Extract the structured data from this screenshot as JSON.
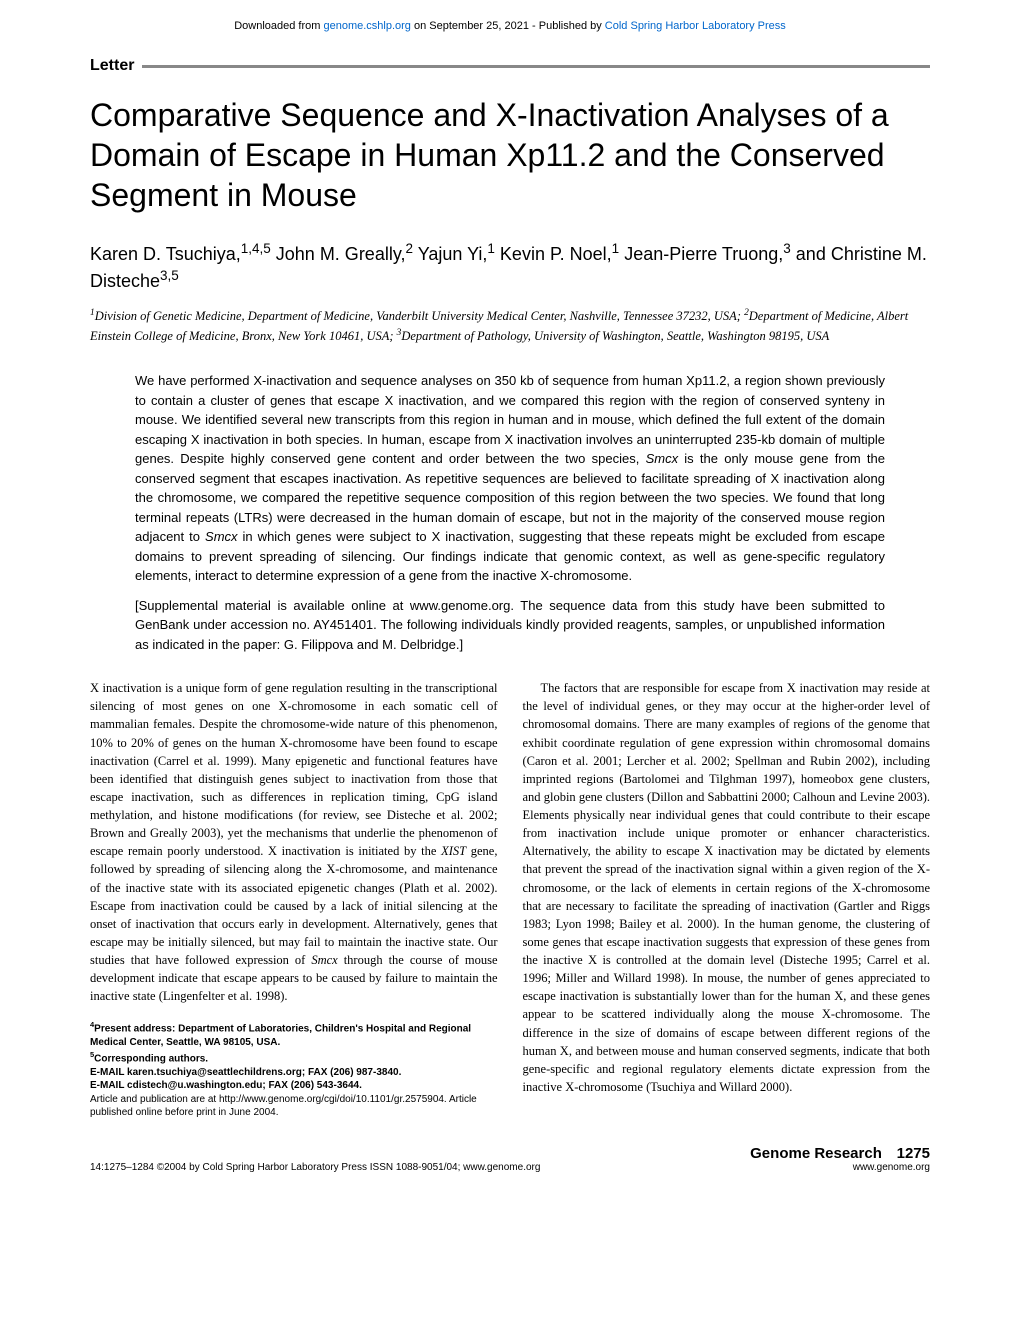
{
  "download": {
    "prefix": "Downloaded from ",
    "link1": "genome.cshlp.org",
    "mid": " on September 25, 2021 - Published by ",
    "link2": "Cold Spring Harbor Laboratory Press"
  },
  "section_label": "Letter",
  "title": "Comparative Sequence and X-Inactivation Analyses of a Domain of Escape in Human Xp11.2 and the Conserved Segment in Mouse",
  "authors_html": "Karen D. Tsuchiya,<sup>1,4,5</sup> John M. Greally,<sup>2</sup> Yajun Yi,<sup>1</sup> Kevin P. Noel,<sup>1</sup> Jean-Pierre Truong,<sup>3</sup> and Christine M. Disteche<sup>3,5</sup>",
  "affiliations_html": "<sup>1</sup>Division of Genetic Medicine, Department of Medicine, Vanderbilt University Medical Center, Nashville, Tennessee 37232, USA; <sup>2</sup>Department of Medicine, Albert Einstein College of Medicine, Bronx, New York 10461, USA; <sup>3</sup>Department of Pathology, University of Washington, Seattle, Washington 98195, USA",
  "abstract": {
    "p1": "We have performed X-inactivation and sequence analyses on 350 kb of sequence from human Xp11.2, a region shown previously to contain a cluster of genes that escape X inactivation, and we compared this region with the region of conserved synteny in mouse. We identified several new transcripts from this region in human and in mouse, which defined the full extent of the domain escaping X inactivation in both species. In human, escape from X inactivation involves an uninterrupted 235-kb domain of multiple genes. Despite highly conserved gene content and order between the two species, <span class=\"italic\">Smcx</span> is the only mouse gene from the conserved segment that escapes inactivation. As repetitive sequences are believed to facilitate spreading of X inactivation along the chromosome, we compared the repetitive sequence composition of this region between the two species. We found that long terminal repeats (LTRs) were decreased in the human domain of escape, but not in the majority of the conserved mouse region adjacent to <span class=\"italic\">Smcx</span> in which genes were subject to X inactivation, suggesting that these repeats might be excluded from escape domains to prevent spreading of silencing. Our findings indicate that genomic context, as well as gene-specific regulatory elements, interact to determine expression of a gene from the inactive X-chromosome.",
    "p2": "[Supplemental material is available online at www.genome.org. The sequence data from this study have been submitted to GenBank under accession no. AY451401. The following individuals kindly provided reagents, samples, or unpublished information as indicated in the paper: G. Filippova and M. Delbridge.]"
  },
  "body": {
    "col1": "X inactivation is a unique form of gene regulation resulting in the transcriptional silencing of most genes on one X-chromosome in each somatic cell of mammalian females. Despite the chromosome-wide nature of this phenomenon, 10% to 20% of genes on the human X-chromosome have been found to escape inactivation (Carrel et al. 1999). Many epigenetic and functional features have been identified that distinguish genes subject to inactivation from those that escape inactivation, such as differences in replication timing, CpG island methylation, and histone modifications (for review, see Disteche et al. 2002; Brown and Greally 2003), yet the mechanisms that underlie the phenomenon of escape remain poorly understood. X inactivation is initiated by the <span class=\"italic\">XIST</span> gene, followed by spreading of silencing along the X-chromosome, and maintenance of the inactive state with its associated epigenetic changes (Plath et al. 2002). Escape from inactivation could be caused by a lack of initial silencing at the onset of inactivation that occurs early in development. Alternatively, genes that escape may be initially silenced, but may fail to maintain the inactive state. Our studies that have followed expression of <span class=\"italic\">Smcx</span> through the course of mouse development indicate that escape appears to be caused by failure to maintain the inactive state (Lingenfelter et al. 1998).",
    "col2": "The factors that are responsible for escape from X inactivation may reside at the level of individual genes, or they may occur at the higher-order level of chromosomal domains. There are many examples of regions of the genome that exhibit coordinate regulation of gene expression within chromosomal domains (Caron et al. 2001; Lercher et al. 2002; Spellman and Rubin 2002), including imprinted regions (Bartolomei and Tilghman 1997), homeobox gene clusters, and globin gene clusters (Dillon and Sabbattini 2000; Calhoun and Levine 2003). Elements physically near individual genes that could contribute to their escape from inactivation include unique promoter or enhancer characteristics. Alternatively, the ability to escape X inactivation may be dictated by elements that prevent the spread of the inactivation signal within a given region of the X-chromosome, or the lack of elements in certain regions of the X-chromosome that are necessary to facilitate the spreading of inactivation (Gartler and Riggs 1983; Lyon 1998; Bailey et al. 2000). In the human genome, the clustering of some genes that escape inactivation suggests that expression of these genes from the inactive X is controlled at the domain level (Disteche 1995; Carrel et al. 1996; Miller and Willard 1998). In mouse, the number of genes appreciated to escape inactivation is substantially lower than for the human X, and these genes appear to be scattered individually along the mouse X-chromosome. The difference in the size of domains of escape between different regions of the human X, and between mouse and human conserved segments, indicate that both gene-specific and regional regulatory elements dictate expression from the inactive X-chromosome (Tsuchiya and Willard 2000)."
  },
  "footnotes": {
    "line1": "<sup>4</sup>Present address: Department of Laboratories, Children's Hospital and Regional Medical Center, Seattle, WA 98105, USA.",
    "line2": "<sup>5</sup>Corresponding authors.",
    "line3": "E-MAIL karen.tsuchiya@seattlechildrens.org; FAX (206) 987-3840.",
    "line4": "E-MAIL cdistech@u.washington.edu; FAX (206) 543-3644.",
    "line5": "Article and publication are at http://www.genome.org/cgi/doi/10.1101/gr.2575904. Article published online before print in June 2004."
  },
  "footer": {
    "left": "14:1275–1284 ©2004 by Cold Spring Harbor Laboratory Press ISSN 1088-9051/04; www.genome.org",
    "journal": "Genome Research",
    "page": "1275",
    "url": "www.genome.org"
  }
}
